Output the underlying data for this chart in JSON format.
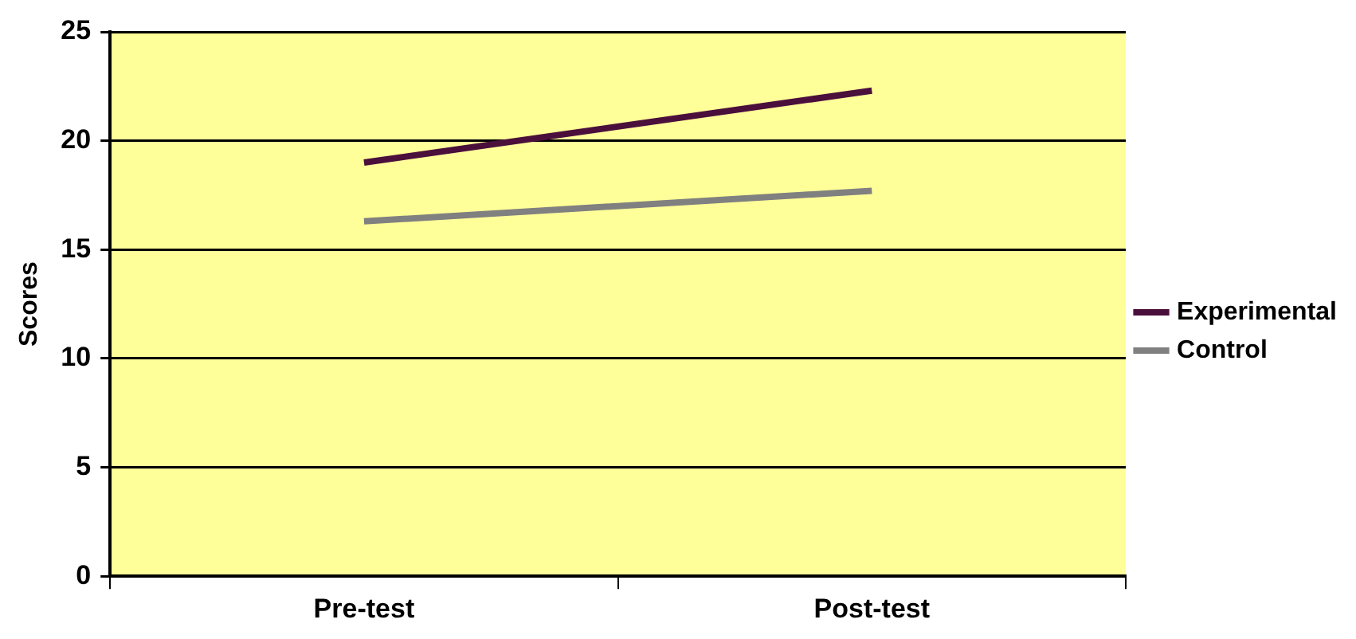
{
  "chart_data": {
    "type": "line",
    "ylabel": "Scores",
    "categories": [
      "Pre-test",
      "Post-test"
    ],
    "series": [
      {
        "name": "Experimental",
        "color": "#4b0f3c",
        "values": [
          19.0,
          22.3
        ]
      },
      {
        "name": "Control",
        "color": "#808080",
        "values": [
          16.3,
          17.7
        ]
      }
    ],
    "ylim": [
      0,
      25
    ],
    "yticks": [
      0,
      5,
      10,
      15,
      20,
      25
    ],
    "grid": "y",
    "legend": "right",
    "marker": "none",
    "line_style": "solid"
  }
}
